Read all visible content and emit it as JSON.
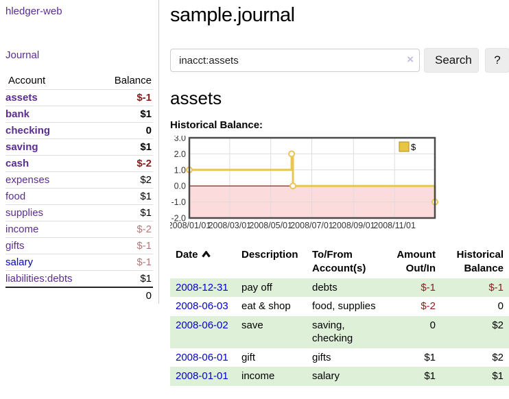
{
  "app": {
    "brand": "hledger-web"
  },
  "nav": {
    "journal": "Journal"
  },
  "colors": {
    "link_purple": "#5b2d90",
    "link_blue": "#0000d0",
    "negative_red": "#8b1a1a",
    "muted_negative": "#b8767d",
    "row_stripe_green": "#dff0d8",
    "series_gold": "#e9c556",
    "negative_area_pink": "#fbdbdb",
    "zero_line_dark_red": "#8b0000"
  },
  "sidebar": {
    "header": {
      "account": "Account",
      "balance": "Balance"
    },
    "accounts": [
      {
        "label": "assets",
        "balance": "$-1"
      },
      {
        "label": "bank",
        "balance": "$1"
      },
      {
        "label": "checking",
        "balance": "0"
      },
      {
        "label": "saving",
        "balance": "$1"
      },
      {
        "label": "cash",
        "balance": "$-2"
      },
      {
        "label": "expenses",
        "balance": "$2"
      },
      {
        "label": "food",
        "balance": "$1"
      },
      {
        "label": "supplies",
        "balance": "$1"
      },
      {
        "label": "income",
        "balance": "$-2"
      },
      {
        "label": "gifts",
        "balance": "$-1"
      },
      {
        "label": "salary",
        "balance": "$-1"
      },
      {
        "label": "liabilities:debts",
        "balance": "$1"
      }
    ],
    "total": "0"
  },
  "header": {
    "title": "sample.journal"
  },
  "search": {
    "value": "inacct:assets",
    "clear_icon": "×",
    "button": "Search",
    "help_button": "?"
  },
  "account_page": {
    "title": "assets",
    "chart_heading": "Historical Balance:"
  },
  "chart_data": {
    "type": "line",
    "step": true,
    "title": "Historical Balance:",
    "series": [
      {
        "name": "$",
        "color": "#e9c556",
        "points": [
          [
            "2008-01-01",
            1
          ],
          [
            "2008-06-01",
            2
          ],
          [
            "2008-06-03",
            0
          ],
          [
            "2008-12-31",
            -1
          ]
        ]
      }
    ],
    "x_range": [
      "2008-01-01",
      "2008-12-31"
    ],
    "x_ticks": [
      "2008/01/01",
      "2008/03/01",
      "2008/05/01",
      "2008/07/01",
      "2008/09/01",
      "2008/11/01"
    ],
    "y_ticks": [
      3.0,
      2.0,
      1.0,
      0.0,
      -1.0,
      -2.0
    ],
    "ylim": [
      -2,
      3
    ],
    "grid": true,
    "legend": {
      "label": "$",
      "swatch_color": "#e8c642",
      "position": "top-right"
    },
    "negative_fill": "#fbdbdb",
    "zero_line_color": "#8b0000"
  },
  "register": {
    "columns": {
      "date": "Date",
      "description": "Description",
      "accounts_l1": "To/From",
      "accounts_l2": "Account(s)",
      "amount_l1": "Amount",
      "amount_l2": "Out/In",
      "balance_l1": "Historical",
      "balance_l2": "Balance"
    },
    "rows": [
      {
        "date": "2008-12-31",
        "description": "pay off",
        "accounts": "debts",
        "amount": "$-1",
        "balance": "$-1"
      },
      {
        "date": "2008-06-03",
        "description": "eat & shop",
        "accounts": "food, supplies",
        "amount": "$-2",
        "balance": "0"
      },
      {
        "date": "2008-06-02",
        "description": "save",
        "accounts": "saving, checking",
        "amount": "0",
        "balance": "$2"
      },
      {
        "date": "2008-06-01",
        "description": "gift",
        "accounts": "gifts",
        "amount": "$1",
        "balance": "$2"
      },
      {
        "date": "2008-01-01",
        "description": "income",
        "accounts": "salary",
        "amount": "$1",
        "balance": "$1"
      }
    ]
  }
}
